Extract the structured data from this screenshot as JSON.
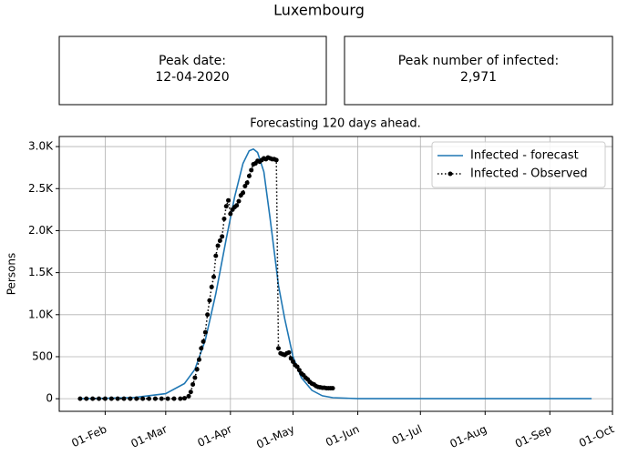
{
  "title": "Luxembourg",
  "info_boxes": [
    {
      "label": "Peak date:",
      "value": "12-04-2020"
    },
    {
      "label": "Peak number of infected:",
      "value": "2,971"
    }
  ],
  "chart_data": {
    "type": "line",
    "title": "Forecasting 120 days ahead.",
    "y_label": "Persons",
    "xlim": [
      "10-Jan",
      "01-Oct"
    ],
    "xticks": [
      "01-Feb",
      "01-Mar",
      "01-Apr",
      "01-May",
      "01-Jun",
      "01-Jul",
      "01-Aug",
      "01-Sep",
      "01-Oct"
    ],
    "ylim": [
      -150,
      3120
    ],
    "yticks": [
      0,
      500,
      {
        "value": 1000,
        "label": "1.0K"
      },
      {
        "value": 1500,
        "label": "1.5K"
      },
      {
        "value": 2000,
        "label": "2.0K"
      },
      {
        "value": 2500,
        "label": "2.5K"
      },
      {
        "value": 3000,
        "label": "3.0K"
      }
    ],
    "grid": true,
    "legend": "upper right",
    "series": [
      {
        "name": "Infected - forecast",
        "color": "#1f77b4",
        "linestyle": "solid",
        "x": [
          "20-Jan",
          "01-Feb",
          "15-Feb",
          "01-Mar",
          "10-Mar",
          "15-Mar",
          "20-Mar",
          "25-Mar",
          "30-Mar",
          "03-Apr",
          "07-Apr",
          "10-Apr",
          "12-Apr",
          "14-Apr",
          "17-Apr",
          "20-Apr",
          "22-Apr",
          "24-Apr",
          "27-Apr",
          "01-May",
          "05-May",
          "10-May",
          "15-May",
          "20-May",
          "01-Jun",
          "01-Jul",
          "21-Sep"
        ],
        "values": [
          0,
          5,
          15,
          60,
          180,
          350,
          700,
          1250,
          1900,
          2400,
          2800,
          2950,
          2971,
          2930,
          2700,
          2150,
          1750,
          1350,
          950,
          500,
          250,
          100,
          35,
          12,
          1,
          0,
          0
        ]
      },
      {
        "name": "Infected - Observed",
        "color": "#000000",
        "linestyle": "dotted",
        "marker": "circle",
        "x": [
          "20-Jan",
          "23-Jan",
          "26-Jan",
          "29-Jan",
          "01-Feb",
          "04-Feb",
          "07-Feb",
          "10-Feb",
          "13-Feb",
          "16-Feb",
          "19-Feb",
          "22-Feb",
          "25-Feb",
          "28-Feb",
          "02-Mar",
          "05-Mar",
          "08-Mar",
          "10-Mar",
          "12-Mar",
          "13-Mar",
          "14-Mar",
          "15-Mar",
          "16-Mar",
          "17-Mar",
          "18-Mar",
          "19-Mar",
          "20-Mar",
          "21-Mar",
          "22-Mar",
          "23-Mar",
          "24-Mar",
          "25-Mar",
          "26-Mar",
          "27-Mar",
          "28-Mar",
          "29-Mar",
          "30-Mar",
          "31-Mar",
          "01-Apr",
          "02-Apr",
          "03-Apr",
          "04-Apr",
          "05-Apr",
          "06-Apr",
          "07-Apr",
          "08-Apr",
          "09-Apr",
          "10-Apr",
          "11-Apr",
          "12-Apr",
          "13-Apr",
          "14-Apr",
          "15-Apr",
          "16-Apr",
          "17-Apr",
          "18-Apr",
          "19-Apr",
          "20-Apr",
          "21-Apr",
          "22-Apr",
          "23-Apr",
          "24-Apr",
          "25-Apr",
          "26-Apr",
          "27-Apr",
          "28-Apr",
          "29-Apr",
          "30-Apr",
          "01-May",
          "02-May",
          "03-May",
          "04-May",
          "05-May",
          "06-May",
          "07-May",
          "08-May",
          "09-May",
          "10-May",
          "11-May",
          "12-May",
          "13-May",
          "14-May",
          "15-May",
          "16-May",
          "17-May",
          "18-May",
          "19-May",
          "20-May"
        ],
        "values": [
          0,
          0,
          0,
          0,
          0,
          0,
          0,
          0,
          0,
          0,
          0,
          0,
          0,
          0,
          0,
          0,
          0,
          5,
          30,
          80,
          170,
          250,
          350,
          465,
          600,
          680,
          790,
          1000,
          1170,
          1330,
          1450,
          1700,
          1820,
          1880,
          1930,
          2140,
          2290,
          2360,
          2200,
          2250,
          2280,
          2300,
          2350,
          2420,
          2450,
          2530,
          2570,
          2650,
          2720,
          2790,
          2800,
          2830,
          2820,
          2840,
          2860,
          2850,
          2870,
          2860,
          2850,
          2850,
          2840,
          600,
          540,
          530,
          520,
          540,
          550,
          480,
          440,
          400,
          380,
          340,
          300,
          280,
          250,
          230,
          200,
          180,
          170,
          150,
          140,
          135,
          130,
          130,
          125,
          125,
          125,
          125
        ]
      }
    ]
  }
}
